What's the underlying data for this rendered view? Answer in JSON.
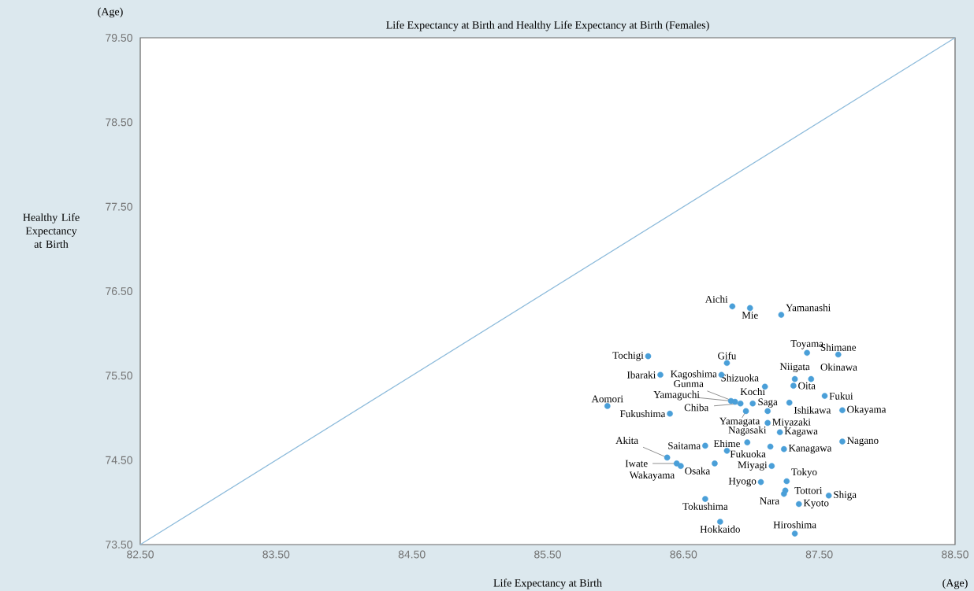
{
  "chart_data": {
    "type": "scatter",
    "title": "Life Expectancy at Birth and Healthy Life Expectancy at Birth (Females)",
    "xlabel": "Life Expectancy at Birth",
    "ylabel": "Healthy Life Expectancy at Birth",
    "xlim": [
      82.5,
      88.5
    ],
    "ylim": [
      73.5,
      79.5
    ],
    "xticks": [
      {
        "value": 82.5,
        "label": "82.50"
      },
      {
        "value": 83.5,
        "label": "83.50"
      },
      {
        "value": 84.5,
        "label": "84.50"
      },
      {
        "value": 85.5,
        "label": "85.50"
      },
      {
        "value": 86.5,
        "label": "86.50"
      },
      {
        "value": 87.5,
        "label": "87.50"
      },
      {
        "value": 88.5,
        "label": "88.50"
      }
    ],
    "yticks": [
      {
        "value": 73.5,
        "label": "73.50"
      },
      {
        "value": 74.5,
        "label": "74.50"
      },
      {
        "value": 75.5,
        "label": "75.50"
      },
      {
        "value": 76.5,
        "label": "76.50"
      },
      {
        "value": 77.5,
        "label": "77.50"
      },
      {
        "value": 78.5,
        "label": "78.50"
      },
      {
        "value": 79.5,
        "label": "79.50"
      }
    ],
    "grid": false,
    "marker": "circle",
    "series": [
      {
        "color": "#4a9fd8",
        "x": [
          86.86,
          86.99,
          87.22,
          87.41,
          87.64,
          86.24,
          86.82,
          86.78,
          86.33,
          87.1,
          87.32,
          87.31,
          87.44,
          87.54,
          87.28,
          86.85,
          86.88,
          86.92,
          87.01,
          85.94,
          87.12,
          86.96,
          86.4,
          87.67,
          87.12,
          87.21,
          87.67,
          86.97,
          86.66,
          87.14,
          87.24,
          86.82,
          86.38,
          86.45,
          86.48,
          86.73,
          87.15,
          87.07,
          87.26,
          87.25,
          87.24,
          87.35,
          87.57,
          86.66,
          86.77,
          87.32
        ],
        "values": [
          76.32,
          76.3,
          76.22,
          75.77,
          75.75,
          75.73,
          75.65,
          75.51,
          75.51,
          75.37,
          75.46,
          75.38,
          75.46,
          75.26,
          75.18,
          75.2,
          75.19,
          75.17,
          75.17,
          75.14,
          75.08,
          75.08,
          75.05,
          75.09,
          74.94,
          74.83,
          74.72,
          74.71,
          74.67,
          74.66,
          74.63,
          74.61,
          74.53,
          74.46,
          74.43,
          74.46,
          74.43,
          74.24,
          74.25,
          74.14,
          74.1,
          73.98,
          74.08,
          74.04,
          73.77,
          73.63
        ]
      },
      {
        "type": "line",
        "marker": "none",
        "color": "#8dbbdb",
        "x": [
          82.5,
          88.5
        ],
        "values": [
          73.5,
          79.5
        ]
      }
    ],
    "annotations": [
      {
        "text": "Aichi",
        "x": 86.86,
        "y": 76.32
      },
      {
        "text": "Mie",
        "x": 86.99,
        "y": 76.3
      },
      {
        "text": "Yamanashi",
        "x": 87.22,
        "y": 76.22
      },
      {
        "text": "Toyama",
        "x": 87.41,
        "y": 75.77
      },
      {
        "text": "Shimane",
        "x": 87.64,
        "y": 75.75
      },
      {
        "text": "Tochigi",
        "x": 86.24,
        "y": 75.73
      },
      {
        "text": "Gifu",
        "x": 86.82,
        "y": 75.65
      },
      {
        "text": "Kagoshima",
        "x": 86.78,
        "y": 75.51
      },
      {
        "text": "Ibaraki",
        "x": 86.33,
        "y": 75.51
      },
      {
        "text": "Shizuoka",
        "x": 87.1,
        "y": 75.37
      },
      {
        "text": "Niigata",
        "x": 87.32,
        "y": 75.46
      },
      {
        "text": "Oita",
        "x": 87.31,
        "y": 75.38
      },
      {
        "text": "Okinawa",
        "x": 87.44,
        "y": 75.46
      },
      {
        "text": "Fukui",
        "x": 87.54,
        "y": 75.26
      },
      {
        "text": "Ishikawa",
        "x": 87.28,
        "y": 75.18
      },
      {
        "text": "Yamaguchi",
        "x": 86.85,
        "y": 75.2
      },
      {
        "text": "Gunma",
        "x": 86.88,
        "y": 75.19
      },
      {
        "text": "Chiba",
        "x": 86.92,
        "y": 75.17
      },
      {
        "text": "Kochi",
        "x": 87.01,
        "y": 75.17
      },
      {
        "text": "Aomori",
        "x": 85.94,
        "y": 75.14
      },
      {
        "text": "Saga",
        "x": 87.12,
        "y": 75.08
      },
      {
        "text": "Yamagata",
        "x": 86.96,
        "y": 75.08
      },
      {
        "text": "Fukushima",
        "x": 86.4,
        "y": 75.05
      },
      {
        "text": "Okayama",
        "x": 87.67,
        "y": 75.09
      },
      {
        "text": "Miyazaki",
        "x": 87.12,
        "y": 74.94
      },
      {
        "text": "Kagawa",
        "x": 87.21,
        "y": 74.83
      },
      {
        "text": "Nagano",
        "x": 87.67,
        "y": 74.72
      },
      {
        "text": "Nagasaki",
        "x": 86.97,
        "y": 74.71
      },
      {
        "text": "Saitama",
        "x": 86.66,
        "y": 74.67
      },
      {
        "text": "Fukuoka",
        "x": 87.14,
        "y": 74.66
      },
      {
        "text": "Kanagawa",
        "x": 87.24,
        "y": 74.63
      },
      {
        "text": "Ehime",
        "x": 86.82,
        "y": 74.61
      },
      {
        "text": "Akita",
        "x": 86.38,
        "y": 74.53
      },
      {
        "text": "Iwate",
        "x": 86.45,
        "y": 74.46
      },
      {
        "text": "Wakayama",
        "x": 86.48,
        "y": 74.43
      },
      {
        "text": "Osaka",
        "x": 86.73,
        "y": 74.46
      },
      {
        "text": "Miyagi",
        "x": 87.15,
        "y": 74.43
      },
      {
        "text": "Hyogo",
        "x": 87.07,
        "y": 74.24
      },
      {
        "text": "Tokyo",
        "x": 87.26,
        "y": 74.25
      },
      {
        "text": "Tottori",
        "x": 87.25,
        "y": 74.14
      },
      {
        "text": "Nara",
        "x": 87.24,
        "y": 74.1
      },
      {
        "text": "Kyoto",
        "x": 87.35,
        "y": 73.98
      },
      {
        "text": "Shiga",
        "x": 87.57,
        "y": 74.08
      },
      {
        "text": "Tokushima",
        "x": 86.66,
        "y": 74.04
      },
      {
        "text": "Hokkaido",
        "x": 86.77,
        "y": 73.77
      },
      {
        "text": "Hiroshima",
        "x": 87.32,
        "y": 73.63
      },
      "(Age)",
      "(Age)"
    ]
  }
}
